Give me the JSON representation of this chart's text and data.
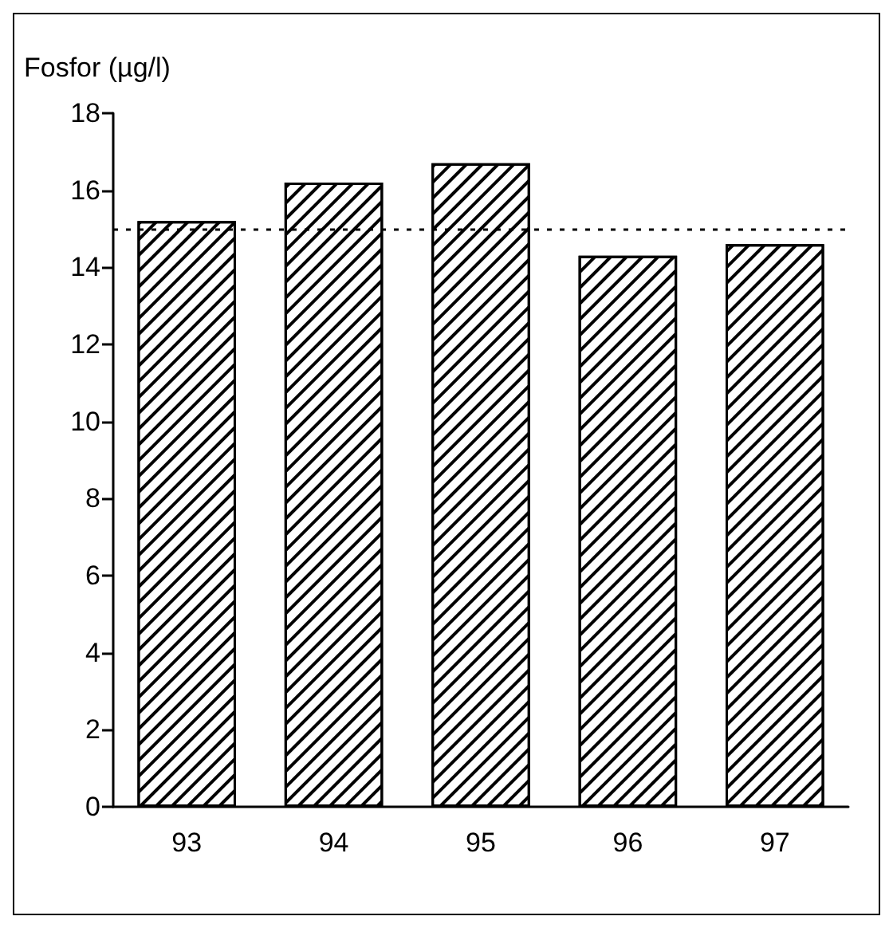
{
  "chart_data": {
    "type": "bar",
    "ylabel": "Fosfor (µg/l)",
    "categories": [
      "93",
      "94",
      "95",
      "96",
      "97"
    ],
    "values": [
      15.2,
      16.2,
      16.7,
      14.3,
      14.6
    ],
    "color": "#ffffff",
    "ylim": [
      0,
      18
    ],
    "yticks": [
      0,
      2,
      4,
      6,
      8,
      10,
      12,
      14,
      16,
      18
    ],
    "grid": false,
    "ref_lines": [
      {
        "axis": "y",
        "value": 15,
        "color": "#000000",
        "line_style": "dotted"
      }
    ]
  }
}
